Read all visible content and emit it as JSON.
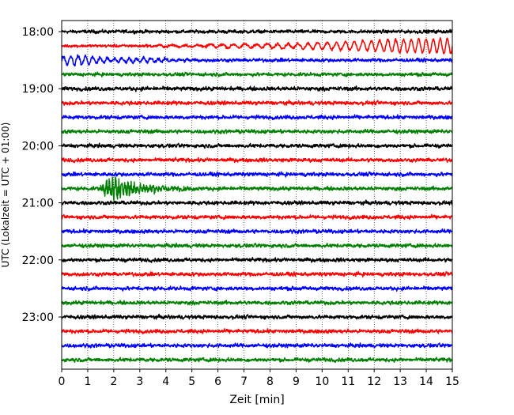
{
  "chart_data": {
    "type": "line",
    "title": "",
    "xlabel": "Zeit  [min]",
    "ylabel": "UTC (Lokalzeit = UTC + 01:00)",
    "xlim": [
      0,
      15
    ],
    "x_ticks": [
      "0",
      "1",
      "2",
      "3",
      "4",
      "5",
      "6",
      "7",
      "8",
      "9",
      "10",
      "11",
      "12",
      "13",
      "14",
      "15"
    ],
    "y_ticks": [
      {
        "time": "18:00",
        "trace_index": 0
      },
      {
        "time": "19:00",
        "trace_index": 4
      },
      {
        "time": "20:00",
        "trace_index": 8
      },
      {
        "time": "21:00",
        "trace_index": 12
      },
      {
        "time": "22:00",
        "trace_index": 16
      },
      {
        "time": "23:00",
        "trace_index": 20
      }
    ],
    "grid": "vertical dotted lines at each minute",
    "trace_interval_min": 15,
    "trace_colors": [
      "#000000",
      "#ff0000",
      "#0000ff",
      "#008000"
    ],
    "traces": [
      {
        "start": "18:00",
        "color": "#000000",
        "amp": 0.12,
        "events": []
      },
      {
        "start": "18:15",
        "color": "#ff0000",
        "amp": 0.1,
        "events": [
          {
            "type": "surface",
            "t0": 2.0,
            "t1": 15.0,
            "amp": 0.55,
            "period": 0.45
          }
        ]
      },
      {
        "start": "18:30",
        "color": "#0000ff",
        "amp": 0.12,
        "events": [
          {
            "type": "coda",
            "t0": 0.0,
            "t1": 6.0,
            "amp": 0.35,
            "period": 0.28
          }
        ]
      },
      {
        "start": "18:45",
        "color": "#008000",
        "amp": 0.12,
        "events": []
      },
      {
        "start": "19:00",
        "color": "#000000",
        "amp": 0.14,
        "events": []
      },
      {
        "start": "19:15",
        "color": "#ff0000",
        "amp": 0.13,
        "events": []
      },
      {
        "start": "19:30",
        "color": "#0000ff",
        "amp": 0.13,
        "events": []
      },
      {
        "start": "19:45",
        "color": "#008000",
        "amp": 0.13,
        "events": []
      },
      {
        "start": "20:00",
        "color": "#000000",
        "amp": 0.13,
        "events": []
      },
      {
        "start": "20:15",
        "color": "#ff0000",
        "amp": 0.13,
        "events": []
      },
      {
        "start": "20:30",
        "color": "#0000ff",
        "amp": 0.13,
        "events": []
      },
      {
        "start": "20:45",
        "color": "#008000",
        "amp": 0.13,
        "events": [
          {
            "type": "burst",
            "t0": 1.4,
            "t1": 5.5,
            "amp": 0.75,
            "period": 0.12
          }
        ]
      },
      {
        "start": "21:00",
        "color": "#000000",
        "amp": 0.13,
        "events": []
      },
      {
        "start": "21:15",
        "color": "#ff0000",
        "amp": 0.13,
        "events": []
      },
      {
        "start": "21:30",
        "color": "#0000ff",
        "amp": 0.13,
        "events": []
      },
      {
        "start": "21:45",
        "color": "#008000",
        "amp": 0.13,
        "events": []
      },
      {
        "start": "22:00",
        "color": "#000000",
        "amp": 0.13,
        "events": []
      },
      {
        "start": "22:15",
        "color": "#ff0000",
        "amp": 0.13,
        "events": []
      },
      {
        "start": "22:30",
        "color": "#0000ff",
        "amp": 0.13,
        "events": []
      },
      {
        "start": "22:45",
        "color": "#008000",
        "amp": 0.13,
        "events": []
      },
      {
        "start": "23:00",
        "color": "#000000",
        "amp": 0.13,
        "events": []
      },
      {
        "start": "23:15",
        "color": "#ff0000",
        "amp": 0.13,
        "events": []
      },
      {
        "start": "23:30",
        "color": "#0000ff",
        "amp": 0.13,
        "events": []
      },
      {
        "start": "23:45",
        "color": "#008000",
        "amp": 0.13,
        "events": []
      }
    ]
  }
}
